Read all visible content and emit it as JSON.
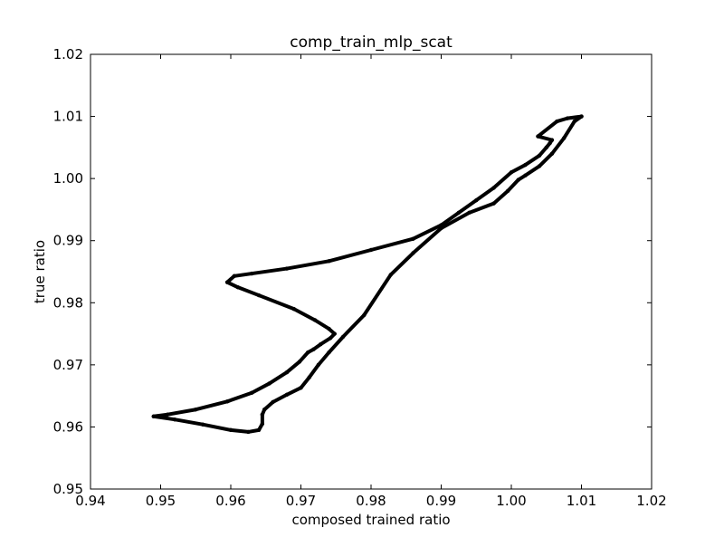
{
  "chart_data": {
    "type": "scatter",
    "title": "comp_train_mlp_scat",
    "xlabel": "composed trained ratio",
    "ylabel": "true ratio",
    "xlim": [
      0.94,
      1.02
    ],
    "ylim": [
      0.95,
      1.02
    ],
    "xticks": [
      "0.94",
      "0.95",
      "0.96",
      "0.97",
      "0.98",
      "0.99",
      "1.00",
      "1.01",
      "1.02"
    ],
    "yticks": [
      "0.95",
      "0.96",
      "0.97",
      "0.98",
      "0.99",
      "1.00",
      "1.01",
      "1.02"
    ],
    "grid": false,
    "legend": "none",
    "series": [
      {
        "color": "#000000",
        "marker": "dense points forming a continuous path",
        "x": [
          1.01,
          1.008,
          1.0065,
          1.0038,
          1.0058,
          1.0055,
          1.005,
          1.004,
          1.002,
          1.0,
          0.9975,
          0.995,
          0.9925,
          0.99,
          0.986,
          0.98,
          0.974,
          0.968,
          0.963,
          0.9605,
          0.9595,
          0.961,
          0.964,
          0.969,
          0.972,
          0.974,
          0.9748,
          0.9742,
          0.9728,
          0.9718,
          0.971,
          0.9698,
          0.968,
          0.9655,
          0.963,
          0.9595,
          0.955,
          0.951,
          0.949,
          0.952,
          0.956,
          0.96,
          0.9625,
          0.964,
          0.9645,
          0.9645,
          0.9648,
          0.966,
          0.968,
          0.97,
          0.9712,
          0.9725,
          0.974,
          0.976,
          0.979,
          0.9828,
          0.986,
          0.99,
          0.994,
          0.9975,
          0.9995,
          1.001,
          1.002,
          1.004,
          1.0058,
          1.0075,
          1.009,
          1.01
        ],
        "y": [
          1.01,
          1.0097,
          1.0092,
          1.0068,
          1.0062,
          1.0057,
          1.005,
          1.0037,
          1.0022,
          1.001,
          0.9985,
          0.9965,
          0.9945,
          0.9925,
          0.9903,
          0.9885,
          0.9867,
          0.9855,
          0.9847,
          0.9843,
          0.9833,
          0.9825,
          0.9812,
          0.979,
          0.9772,
          0.9758,
          0.975,
          0.9743,
          0.9733,
          0.9725,
          0.972,
          0.9705,
          0.9688,
          0.967,
          0.9655,
          0.9641,
          0.9628,
          0.962,
          0.9617,
          0.9612,
          0.9604,
          0.9595,
          0.9592,
          0.9595,
          0.9605,
          0.962,
          0.9628,
          0.964,
          0.9652,
          0.9663,
          0.968,
          0.97,
          0.972,
          0.9745,
          0.978,
          0.9845,
          0.988,
          0.992,
          0.9945,
          0.996,
          0.998,
          0.9998,
          1.0005,
          1.002,
          1.004,
          1.0065,
          1.0092,
          1.01
        ]
      }
    ]
  }
}
